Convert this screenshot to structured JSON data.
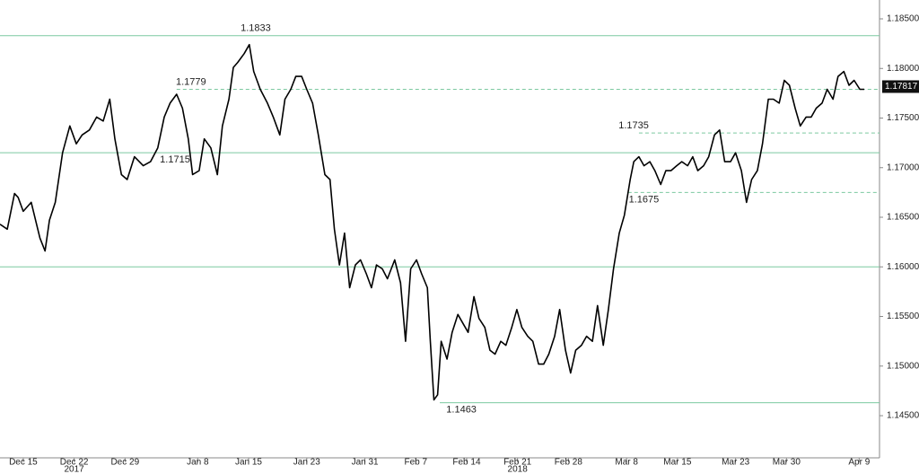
{
  "chart_data": {
    "type": "line",
    "xlim": [
      -3.2,
      117.8
    ],
    "ylim": [
      1.14075,
      1.1869
    ],
    "xticks": [
      {
        "value": 0,
        "label": "Dec 15"
      },
      {
        "value": 7,
        "label": "Dec 22"
      },
      {
        "value": 14,
        "label": "Dec 29"
      },
      {
        "value": 24,
        "label": "Jan 8"
      },
      {
        "value": 31,
        "label": "Jan 15"
      },
      {
        "value": 39,
        "label": "Jan 23"
      },
      {
        "value": 47,
        "label": "Jan 31"
      },
      {
        "value": 54,
        "label": "Feb 7"
      },
      {
        "value": 61,
        "label": "Feb 14"
      },
      {
        "value": 68,
        "label": "Feb 21"
      },
      {
        "value": 75,
        "label": "Feb 28"
      },
      {
        "value": 83,
        "label": "Mar 8"
      },
      {
        "value": 90,
        "label": "Mar 15"
      },
      {
        "value": 98,
        "label": "Mar 23"
      },
      {
        "value": 105,
        "label": "Mar 30"
      },
      {
        "value": 115,
        "label": "Apr 9"
      }
    ],
    "year_labels": [
      {
        "x": 7,
        "label": "2017"
      },
      {
        "x": 68,
        "label": "2018"
      }
    ],
    "yticks": [
      {
        "value": 1.145,
        "label": "1.14500"
      },
      {
        "value": 1.15,
        "label": "1.15000"
      },
      {
        "value": 1.155,
        "label": "1.15500"
      },
      {
        "value": 1.16,
        "label": "1.16000"
      },
      {
        "value": 1.165,
        "label": "1.16500"
      },
      {
        "value": 1.17,
        "label": "1.17000"
      },
      {
        "value": 1.175,
        "label": "1.17500"
      },
      {
        "value": 1.18,
        "label": "1.18000"
      },
      {
        "value": 1.185,
        "label": "1.18500"
      }
    ],
    "level_color": "#7cc9a0",
    "levels": [
      {
        "value": 1.1833,
        "label": "1.1833",
        "label_x": 29.9,
        "style": "solid",
        "label_below": false
      },
      {
        "value": 1.1779,
        "label": "1.1779",
        "from": 21.1,
        "label_x": 21.0,
        "style": "dashed",
        "label_below": false
      },
      {
        "value": 1.1715,
        "label": "1.1715",
        "label_x": 18.8,
        "style": "solid",
        "label_below": true
      },
      {
        "value": 1.16,
        "style": "solid"
      },
      {
        "value": 1.1735,
        "label": "1.1735",
        "from": 84.7,
        "label_x": 81.9,
        "style": "dashed",
        "label_below": false
      },
      {
        "value": 1.1675,
        "label": "1.1675",
        "from": 83.2,
        "label_x": 83.3,
        "style": "dashed",
        "label_below": true
      },
      {
        "value": 1.1463,
        "label": "1.1463",
        "from": 57.3,
        "label_x": 58.2,
        "style": "solid",
        "label_below": true
      }
    ],
    "last": {
      "value": 1.17817,
      "label": "1.17817"
    },
    "series": [
      {
        "color": "#000000",
        "x": [
          -3.2,
          -2.2,
          -1.2,
          -0.7,
          0,
          1.1,
          2.3,
          3.0,
          3.6,
          4.4,
          5.4,
          6.4,
          7.3,
          8.1,
          9.1,
          10.1,
          11.0,
          11.9,
          12.6,
          13.5,
          14.3,
          15.3,
          16.5,
          17.5,
          18.5,
          19.4,
          20.2,
          21.1,
          21.9,
          22.7,
          23.3,
          24.2,
          24.9,
          25.8,
          26.7,
          27.4,
          28.3,
          28.9,
          29.5,
          30.4,
          31.1,
          31.7,
          32.6,
          33.6,
          34.4,
          35.3,
          36.0,
          36.8,
          37.5,
          38.3,
          39.0,
          39.8,
          40.6,
          41.5,
          42.2,
          42.8,
          43.5,
          44.2,
          44.9,
          45.7,
          46.4,
          47.2,
          47.9,
          48.6,
          49.4,
          50.1,
          51.1,
          51.9,
          52.6,
          53.3,
          54.1,
          54.8,
          55.6,
          56.0,
          56.5,
          57.0,
          57.5,
          58.3,
          59.0,
          59.8,
          60.5,
          61.2,
          62.0,
          62.7,
          63.5,
          64.2,
          64.9,
          65.7,
          66.4,
          67.2,
          67.9,
          68.6,
          69.4,
          70.1,
          70.9,
          71.6,
          72.3,
          73.1,
          73.8,
          74.6,
          75.3,
          76.0,
          76.8,
          77.5,
          78.3,
          79.0,
          79.8,
          80.5,
          81.2,
          82.0,
          82.7,
          83.5,
          84.0,
          84.7,
          85.4,
          86.2,
          86.9,
          87.7,
          88.4,
          89.1,
          89.9,
          90.6,
          91.4,
          92.1,
          92.8,
          93.6,
          94.3,
          95.1,
          95.8,
          96.5,
          97.3,
          98.0,
          98.8,
          99.5,
          100.2,
          101.0,
          101.7,
          102.5,
          103.2,
          104.0,
          104.7,
          105.4,
          106.2,
          106.9,
          107.7,
          108.4,
          109.1,
          109.9,
          110.6,
          111.4,
          112.1,
          112.9,
          113.6,
          114.3,
          115.1,
          115.7
        ],
        "values": [
          1.1643,
          1.1638,
          1.1674,
          1.167,
          1.1656,
          1.1665,
          1.1629,
          1.1616,
          1.1647,
          1.1665,
          1.1715,
          1.1742,
          1.1724,
          1.1733,
          1.1738,
          1.1751,
          1.1747,
          1.1769,
          1.1729,
          1.1693,
          1.1688,
          1.1711,
          1.1702,
          1.1706,
          1.172,
          1.1751,
          1.1765,
          1.1774,
          1.176,
          1.1729,
          1.1693,
          1.1697,
          1.1729,
          1.172,
          1.1693,
          1.1742,
          1.1769,
          1.1801,
          1.1806,
          1.1815,
          1.1824,
          1.1797,
          1.1779,
          1.1765,
          1.1751,
          1.1733,
          1.1769,
          1.1779,
          1.1792,
          1.1792,
          1.1779,
          1.1765,
          1.1733,
          1.1693,
          1.1688,
          1.1638,
          1.1602,
          1.1634,
          1.1579,
          1.1602,
          1.1607,
          1.1593,
          1.1579,
          1.1602,
          1.1598,
          1.1588,
          1.1607,
          1.1584,
          1.1525,
          1.1598,
          1.1607,
          1.1593,
          1.1579,
          1.1525,
          1.1466,
          1.1471,
          1.1525,
          1.1507,
          1.1534,
          1.1552,
          1.1543,
          1.1534,
          1.157,
          1.1548,
          1.1539,
          1.1516,
          1.1512,
          1.1525,
          1.1521,
          1.1539,
          1.1557,
          1.1539,
          1.153,
          1.1525,
          1.1502,
          1.1502,
          1.1512,
          1.153,
          1.1557,
          1.1516,
          1.1493,
          1.1516,
          1.1521,
          1.153,
          1.1525,
          1.1561,
          1.1521,
          1.1557,
          1.1598,
          1.1634,
          1.1652,
          1.1688,
          1.1706,
          1.1711,
          1.1702,
          1.1706,
          1.1697,
          1.1683,
          1.1697,
          1.1697,
          1.1702,
          1.1706,
          1.1702,
          1.1711,
          1.1697,
          1.1702,
          1.1711,
          1.1733,
          1.1738,
          1.1706,
          1.1706,
          1.1715,
          1.1697,
          1.1665,
          1.1688,
          1.1697,
          1.1724,
          1.1769,
          1.1769,
          1.1765,
          1.1788,
          1.1783,
          1.176,
          1.1742,
          1.1751,
          1.1751,
          1.176,
          1.1765,
          1.1779,
          1.1769,
          1.1792,
          1.1797,
          1.1783,
          1.1788,
          1.1779,
          1.1779
        ]
      }
    ]
  }
}
